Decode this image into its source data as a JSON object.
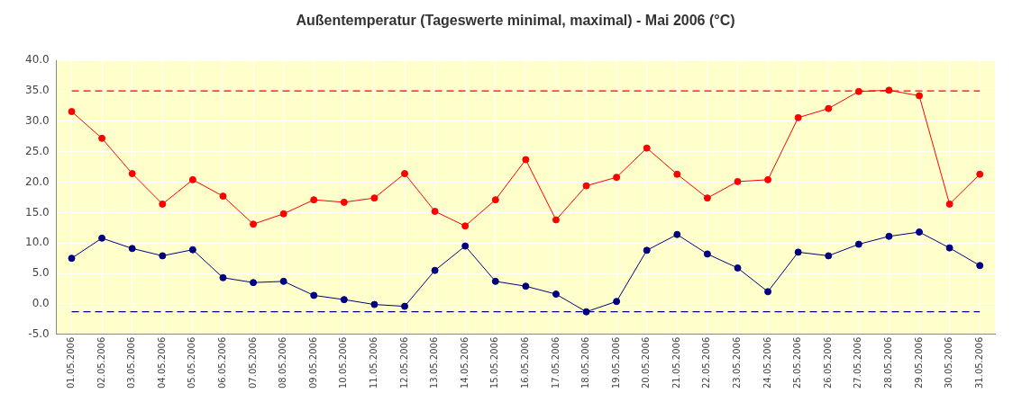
{
  "chart_data": {
    "type": "line",
    "title": "Außentemperatur (Tageswerte minimal, maximal) - Mai 2006 (°C)",
    "categories": [
      "01.05.2006",
      "02.05.2006",
      "03.05.2006",
      "04.05.2006",
      "05.05.2006",
      "06.05.2006",
      "07.05.2006",
      "08.05.2006",
      "09.05.2006",
      "10.05.2006",
      "11.05.2006",
      "12.05.2006",
      "13.05.2006",
      "14.05.2006",
      "15.05.2006",
      "16.05.2006",
      "17.05.2006",
      "18.05.2006",
      "19.05.2006",
      "20.05.2006",
      "21.05.2006",
      "22.05.2006",
      "23.05.2006",
      "24.05.2006",
      "25.05.2006",
      "26.05.2006",
      "27.05.2006",
      "28.05.2006",
      "29.05.2006",
      "30.05.2006",
      "31.05.2006"
    ],
    "series": [
      {
        "color": "#000080",
        "values": [
          7.5,
          10.8,
          9.1,
          7.9,
          8.9,
          4.3,
          3.5,
          3.7,
          1.4,
          0.7,
          -0.1,
          -0.4,
          5.5,
          9.5,
          3.7,
          2.9,
          1.6,
          -1.3,
          0.4,
          8.8,
          11.4,
          8.2,
          5.9,
          2.0,
          8.5,
          7.9,
          9.8,
          11.1,
          11.8,
          9.2,
          6.3
        ]
      },
      {
        "color": "#ff0000",
        "values": [
          31.6,
          27.2,
          21.4,
          16.4,
          20.4,
          17.7,
          13.1,
          14.8,
          17.1,
          16.7,
          17.4,
          21.4,
          15.2,
          12.8,
          17.1,
          23.7,
          13.8,
          19.4,
          20.8,
          25.6,
          21.3,
          17.4,
          20.1,
          20.4,
          30.6,
          32.1,
          34.9,
          35.1,
          34.2,
          16.4,
          21.3
        ]
      }
    ],
    "ylim": [
      -5,
      40
    ],
    "yticks": [
      {
        "value": -5,
        "label": "-5.0"
      },
      {
        "value": 0,
        "label": "0.0"
      },
      {
        "value": 5,
        "label": "5.0"
      },
      {
        "value": 10,
        "label": "10.0"
      },
      {
        "value": 15,
        "label": "15.0"
      },
      {
        "value": 20,
        "label": "20.0"
      },
      {
        "value": 25,
        "label": "25.0"
      },
      {
        "value": 30,
        "label": "30.0"
      },
      {
        "value": 35,
        "label": "35.0"
      },
      {
        "value": 40,
        "label": "40.0"
      }
    ],
    "ref_lines": [
      {
        "axis": "y",
        "value": 35,
        "color": "#ff0000",
        "line_style": "dashed"
      },
      {
        "axis": "y",
        "value": -1.3,
        "color": "#000080",
        "line_style": "dashed"
      }
    ],
    "grid": true,
    "legend": false,
    "marker": "circle",
    "line_style": "solid"
  }
}
